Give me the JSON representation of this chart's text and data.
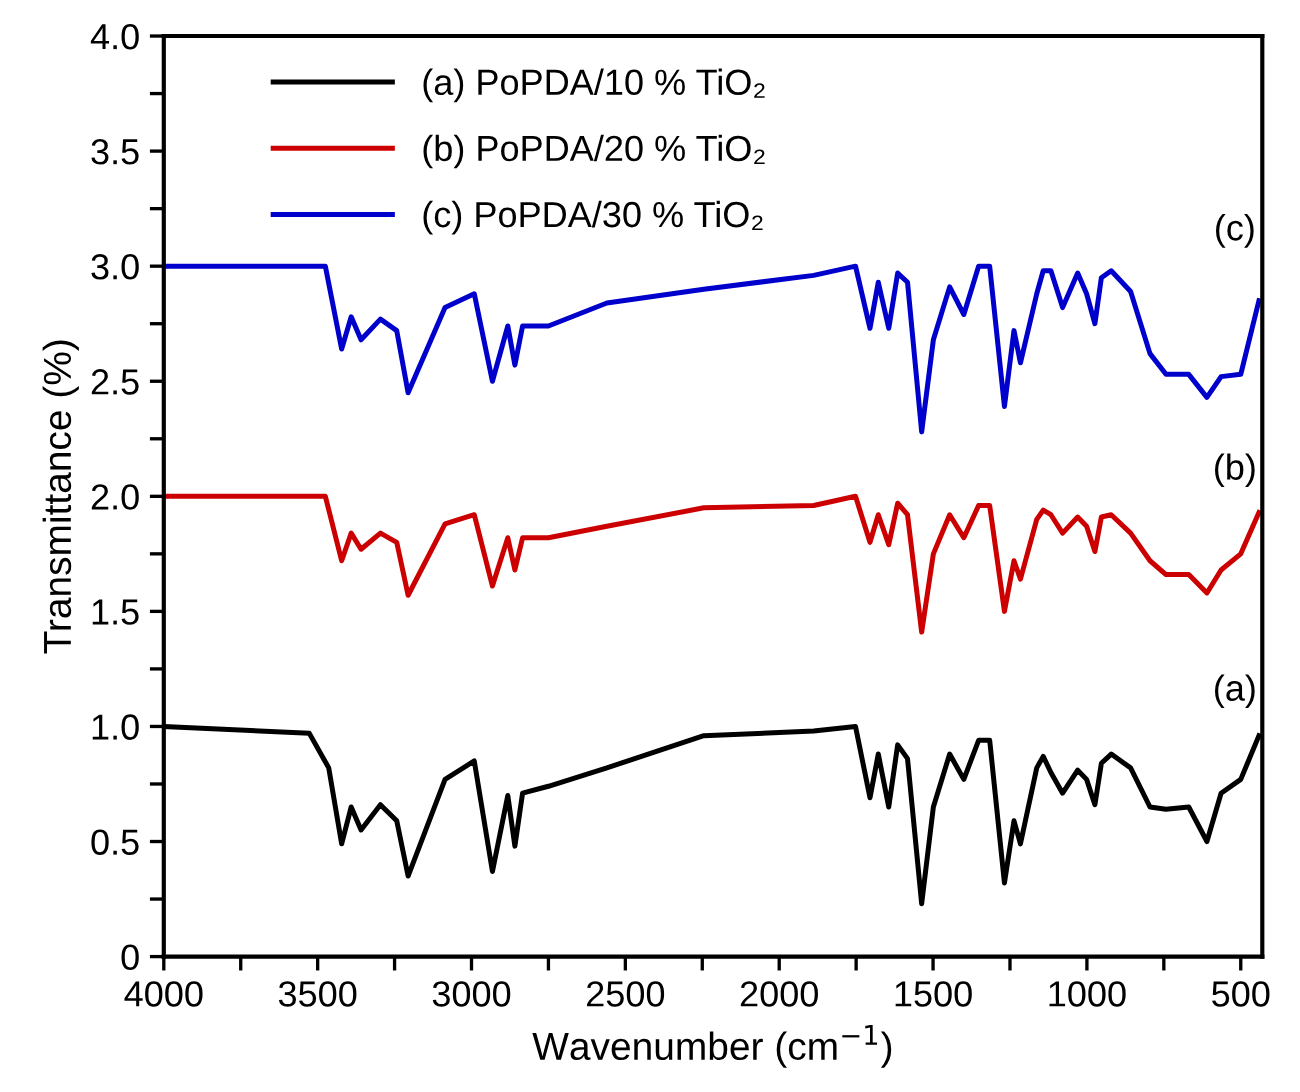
{
  "chart_data": {
    "type": "line",
    "xlabel": "Wavenumber (cm$^{−1}$)",
    "ylabel": "Transmittance (%)",
    "xlim": [
      4000,
      430
    ],
    "ylim": [
      0,
      4.0
    ],
    "xticks": [
      4000,
      3500,
      3000,
      2500,
      2000,
      1500,
      1000,
      500,
      {
        "value": 3750,
        "label": null
      },
      {
        "value": 3250,
        "label": null
      },
      {
        "value": 2750,
        "label": null
      },
      {
        "value": 2250,
        "label": null
      },
      {
        "value": 1750,
        "label": null
      },
      {
        "value": 1250,
        "label": null
      },
      {
        "value": 750,
        "label": null
      }
    ],
    "yticks": [
      0,
      {
        "value": 0.5,
        "label": "0.5"
      },
      {
        "value": 1.0,
        "label": "1.0"
      },
      {
        "value": 1.5,
        "label": "1.5"
      },
      {
        "value": 2.0,
        "label": "2.0"
      },
      {
        "value": 2.5,
        "label": "2.5"
      },
      {
        "value": 3.0,
        "label": "3.0"
      },
      {
        "value": 3.5,
        "label": "3.5"
      },
      {
        "value": 4.0,
        "label": "4.0"
      },
      {
        "value": 0.25,
        "label": null
      },
      {
        "value": 0.75,
        "label": null
      },
      {
        "value": 1.25,
        "label": null
      },
      {
        "value": 1.75,
        "label": null
      },
      {
        "value": 2.25,
        "label": null
      },
      {
        "value": 2.75,
        "label": null
      },
      {
        "value": 3.25,
        "label": null
      },
      {
        "value": 3.75,
        "label": null
      }
    ],
    "grid": false,
    "legend": "top left",
    "marker": "none",
    "line_style": "solid",
    "annotations": [
      "(c)",
      "(b)",
      "(a)"
    ],
    "series": [
      {
        "name": "(a) PoPDA/10 % TiO₂",
        "color": "#000000",
        "x": [
          4000,
          3527,
          3464,
          3422,
          3391,
          3359,
          3296,
          3243,
          3206,
          3086,
          2991,
          2932,
          2882,
          2859,
          2834,
          2750,
          2560,
          2245,
          1888,
          1752,
          1705,
          1678,
          1644,
          1615,
          1583,
          1537,
          1499,
          1446,
          1400,
          1352,
          1316,
          1268,
          1237,
          1216,
          1163,
          1142,
          1117,
          1079,
          1030,
          1001,
          974,
          953,
          921,
          858,
          795,
          743,
          669,
          610,
          564,
          500,
          441
        ],
        "values": [
          1.0,
          0.97,
          0.82,
          0.49,
          0.65,
          0.55,
          0.66,
          0.59,
          0.35,
          0.77,
          0.85,
          0.37,
          0.7,
          0.48,
          0.71,
          0.74,
          0.82,
          0.96,
          0.98,
          1.0,
          0.69,
          0.88,
          0.65,
          0.92,
          0.86,
          0.23,
          0.65,
          0.88,
          0.77,
          0.94,
          0.94,
          0.32,
          0.59,
          0.49,
          0.82,
          0.87,
          0.8,
          0.71,
          0.81,
          0.77,
          0.66,
          0.84,
          0.88,
          0.82,
          0.65,
          0.64,
          0.65,
          0.5,
          0.71,
          0.77,
          0.96
        ]
      },
      {
        "name": "(b) PoPDA/20 % TiO₂",
        "color": "#cc0000",
        "x": [
          4000,
          3475,
          3422,
          3391,
          3359,
          3296,
          3243,
          3206,
          3086,
          2991,
          2932,
          2882,
          2859,
          2834,
          2750,
          2560,
          2245,
          1888,
          1752,
          1705,
          1678,
          1644,
          1615,
          1583,
          1537,
          1499,
          1446,
          1400,
          1352,
          1316,
          1268,
          1237,
          1216,
          1163,
          1142,
          1117,
          1079,
          1030,
          1001,
          974,
          953,
          921,
          858,
          795,
          743,
          669,
          610,
          564,
          500,
          441
        ],
        "values": [
          2.0,
          2.0,
          1.72,
          1.84,
          1.77,
          1.84,
          1.8,
          1.57,
          1.88,
          1.92,
          1.61,
          1.82,
          1.68,
          1.82,
          1.82,
          1.87,
          1.95,
          1.96,
          2.0,
          1.8,
          1.92,
          1.79,
          1.97,
          1.92,
          1.41,
          1.75,
          1.92,
          1.82,
          1.96,
          1.96,
          1.5,
          1.72,
          1.64,
          1.9,
          1.94,
          1.92,
          1.84,
          1.91,
          1.87,
          1.76,
          1.91,
          1.92,
          1.84,
          1.72,
          1.66,
          1.66,
          1.58,
          1.68,
          1.75,
          1.93
        ]
      },
      {
        "name": "(c) PoPDA/30 % TiO₂",
        "color": "#0000cc",
        "x": [
          4000,
          3475,
          3422,
          3391,
          3359,
          3296,
          3243,
          3206,
          3086,
          2991,
          2932,
          2882,
          2859,
          2834,
          2750,
          2560,
          2245,
          1888,
          1752,
          1705,
          1678,
          1644,
          1615,
          1583,
          1537,
          1499,
          1446,
          1400,
          1352,
          1316,
          1268,
          1237,
          1216,
          1163,
          1142,
          1117,
          1079,
          1030,
          1001,
          974,
          953,
          921,
          858,
          795,
          743,
          669,
          610,
          564,
          500,
          441
        ],
        "values": [
          3.0,
          3.0,
          2.64,
          2.78,
          2.68,
          2.77,
          2.72,
          2.45,
          2.82,
          2.88,
          2.5,
          2.74,
          2.57,
          2.74,
          2.74,
          2.84,
          2.9,
          2.96,
          3.0,
          2.73,
          2.93,
          2.73,
          2.97,
          2.93,
          2.28,
          2.68,
          2.91,
          2.79,
          3.0,
          3.0,
          2.39,
          2.72,
          2.58,
          2.88,
          2.98,
          2.98,
          2.82,
          2.97,
          2.88,
          2.75,
          2.95,
          2.98,
          2.89,
          2.62,
          2.53,
          2.53,
          2.43,
          2.52,
          2.53,
          2.85
        ]
      }
    ]
  }
}
